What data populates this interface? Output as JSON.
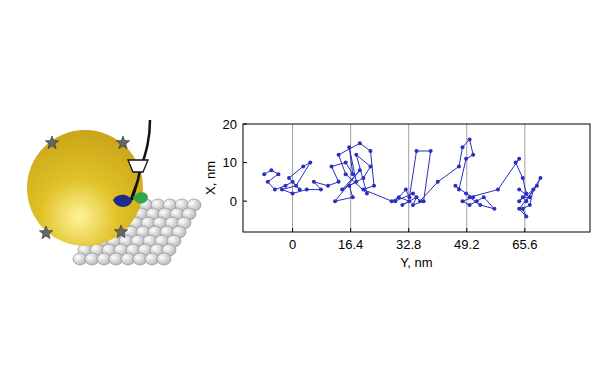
{
  "chart_data": {
    "type": "line",
    "xlabel": "Y, nm",
    "ylabel": "X, nm",
    "x": [
      -8,
      -6,
      -4,
      -7,
      -5,
      -2,
      0,
      2,
      -1,
      3,
      5,
      1,
      -3,
      0,
      4,
      8,
      6,
      10,
      13,
      11,
      15,
      17,
      16,
      18,
      14,
      19,
      12,
      17,
      16,
      20,
      22,
      18,
      21,
      15,
      13,
      19,
      22,
      23,
      20,
      28,
      30,
      33,
      31,
      35,
      34,
      37,
      39,
      35,
      33,
      32,
      29,
      34,
      36,
      41,
      47,
      48,
      50,
      51,
      49,
      47,
      46,
      49,
      51,
      48,
      50,
      52,
      54,
      57,
      53,
      50,
      58,
      64,
      63,
      65,
      66,
      64,
      68,
      67,
      65,
      66,
      64,
      69,
      70,
      66,
      65,
      67,
      64
    ],
    "values": [
      7,
      8,
      7,
      5,
      3,
      4,
      5,
      3,
      6,
      9,
      10,
      4,
      3,
      2,
      3,
      3,
      5,
      4,
      5,
      9,
      10,
      7,
      14,
      5,
      3,
      8,
      0,
      1,
      4,
      6,
      9,
      12,
      2,
      7,
      12,
      15,
      13,
      4,
      3,
      0,
      1,
      0,
      -1,
      1,
      -1,
      0,
      13,
      13,
      1,
      3,
      0,
      2,
      0,
      5,
      9,
      14,
      16,
      12,
      11,
      3,
      4,
      2,
      1,
      0,
      -1,
      0,
      1,
      -2,
      -1,
      1,
      3,
      11,
      10,
      6,
      2,
      0,
      3,
      -1,
      -2,
      -4,
      -2,
      4,
      6,
      0,
      1,
      1,
      3
    ],
    "xlim": [
      -14,
      84
    ],
    "xticks": [
      0,
      16.4,
      32.8,
      49.2,
      65.6
    ],
    "ylim": [
      -8,
      20
    ],
    "yticks": [
      0,
      10,
      20
    ],
    "grid": true,
    "color": "#2a2fc0",
    "marker": "circle",
    "line_style": "solid"
  }
}
